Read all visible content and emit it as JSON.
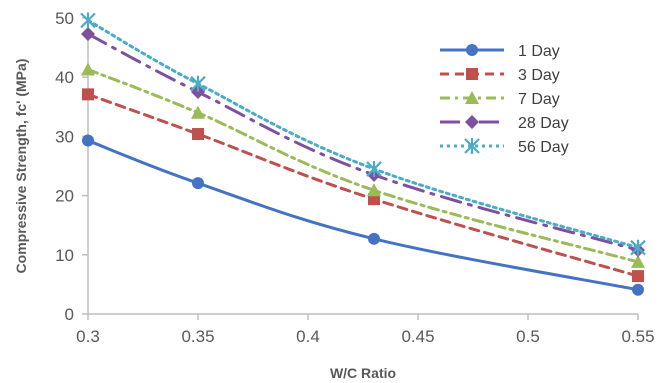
{
  "chart_data": {
    "type": "line",
    "xlabel": "W/C Ratio",
    "ylabel": "Compressive Strength, fc' (MPa)",
    "xlim": [
      0.3,
      0.55
    ],
    "ylim": [
      0,
      50
    ],
    "x_ticks": [
      "0.3",
      "0.35",
      "0.4",
      "0.45",
      "0.5",
      "0.55"
    ],
    "y_ticks": [
      "0",
      "10",
      "20",
      "30",
      "40",
      "50"
    ],
    "grid": false,
    "legend_position": "top-right",
    "x": [
      0.3,
      0.35,
      0.43,
      0.55
    ],
    "series": [
      {
        "name": "1 Day",
        "values": [
          29.3,
          22.1,
          12.7,
          4.1
        ],
        "color": "#4472c4",
        "marker": "circle",
        "line": "solid"
      },
      {
        "name": "3 Day",
        "values": [
          37.1,
          30.4,
          19.4,
          6.4
        ],
        "color": "#c0504d",
        "marker": "square",
        "line": "dashed"
      },
      {
        "name": "7 Day",
        "values": [
          41.3,
          34.0,
          20.9,
          8.8
        ],
        "color": "#9bbb59",
        "marker": "triangle",
        "line": "dashdot"
      },
      {
        "name": "28 Day",
        "values": [
          47.3,
          37.5,
          23.5,
          10.8
        ],
        "color": "#7f4fa0",
        "marker": "diamond",
        "line": "longdashdot"
      },
      {
        "name": "56 Day",
        "values": [
          49.6,
          38.9,
          24.5,
          11.2
        ],
        "color": "#4bacc6",
        "marker": "star",
        "line": "dotted"
      }
    ]
  }
}
